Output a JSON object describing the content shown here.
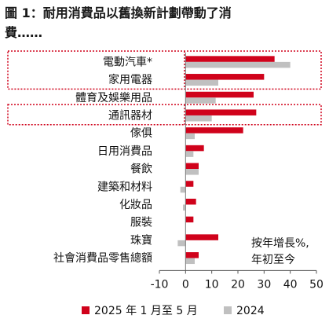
{
  "title": {
    "line1": "圖 1：耐用消費品以舊換新計劃帶動了消",
    "line2": "費……"
  },
  "chart_data": {
    "type": "bar",
    "orientation": "horizontal",
    "categories": [
      "電動汽車*",
      "家用電器",
      "體育及娛樂用品",
      "通訊器材",
      "傢俱",
      "日用消費品",
      "餐飲",
      "建築和材料",
      "化妝品",
      "服裝",
      "珠寶",
      "社會消費品零售總額"
    ],
    "series": [
      {
        "name": "2025 年 1 月至 5 月",
        "color": "#d0021b",
        "values": [
          34,
          30,
          26,
          27,
          22,
          7,
          5,
          3,
          4,
          3,
          12.5,
          5
        ]
      },
      {
        "name": "2024",
        "color": "#c0c0c0",
        "values": [
          40,
          12.5,
          11.5,
          10,
          3.5,
          3,
          5,
          -2,
          -1,
          0,
          -3,
          3.5
        ]
      }
    ],
    "xlim": [
      -10,
      50
    ],
    "xticks": [
      "-10",
      "0",
      "10",
      "20",
      "30",
      "40",
      "50"
    ],
    "highlighted_categories": [
      "電動汽車*",
      "家用電器",
      "通訊器材"
    ],
    "annotation": [
      "按年增長%,",
      "年初至今"
    ],
    "legend_position": "bottom",
    "grid": false
  }
}
